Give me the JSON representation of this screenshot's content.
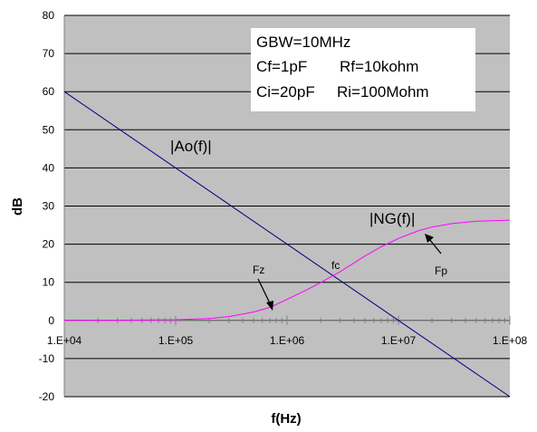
{
  "chart_data": {
    "type": "line",
    "xlabel": "f(Hz)",
    "ylabel": "dB",
    "x_scale": "log",
    "xlim": [
      10000,
      100000000
    ],
    "ylim": [
      -20,
      80
    ],
    "grid": true,
    "plot_background": "#c0c0c0",
    "x_ticks": [
      10000,
      100000,
      1000000,
      10000000,
      100000000
    ],
    "x_tick_labels": [
      "1.E+04",
      "1.E+05",
      "1.E+06",
      "1.E+07",
      "1.E+08"
    ],
    "y_ticks": [
      -20,
      -10,
      0,
      10,
      20,
      30,
      40,
      50,
      60,
      70,
      80
    ],
    "y_tick_labels": [
      "-20",
      "-10",
      "0",
      "10",
      "20",
      "30",
      "40",
      "50",
      "60",
      "70",
      "80"
    ],
    "series": [
      {
        "name": "|Ao(f)|",
        "color": "#000080",
        "x": [
          10000,
          100000,
          1000000,
          10000000,
          100000000
        ],
        "y": [
          60,
          40,
          20,
          0,
          -20
        ]
      },
      {
        "name": "|NG(f)|",
        "color": "#ff00ff",
        "x": [
          10000,
          50000,
          100000,
          200000,
          300000,
          500000,
          700000,
          1000000,
          1500000,
          2000000,
          3000000,
          5000000,
          7000000,
          10000000,
          15000000,
          20000000,
          30000000,
          50000000,
          100000000
        ],
        "y": [
          0,
          0.1,
          0.2,
          0.5,
          1.0,
          2.2,
          3.4,
          5.5,
          8.0,
          9.9,
          12.8,
          16.9,
          19.3,
          21.5,
          23.5,
          24.5,
          25.4,
          26.0,
          26.3
        ]
      }
    ],
    "annotations": {
      "ao_label": "|Ao(f)|",
      "ng_label": "|NG(f)|",
      "fz_label": "Fz",
      "fc_label": "fc",
      "fp_label": "Fp"
    },
    "info_box": {
      "line1": "GBW=10MHz",
      "line2a": "Cf=1pF",
      "line2b": "Rf=10kohm",
      "line3a": "Ci=20pF",
      "line3b": "Ri=100Mohm"
    }
  }
}
